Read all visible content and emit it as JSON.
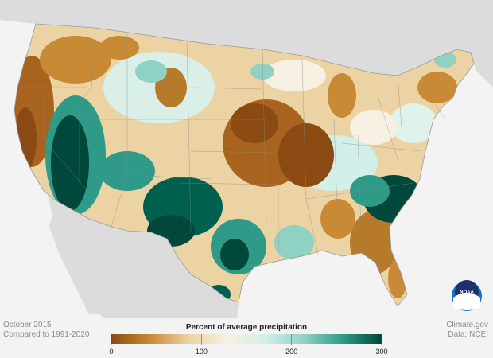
{
  "date_label": "October 2015",
  "compare_label": "Compared to 1991-2020",
  "legend": {
    "title": "Percent of average precipitation",
    "min": 0,
    "max": 300,
    "ticks": [
      "0",
      "100",
      "200",
      "300"
    ],
    "tick_values": [
      0,
      100,
      200,
      300
    ],
    "colors": [
      "#8a4a12",
      "#c98a35",
      "#ecd3a3",
      "#f7f1e3",
      "#d3efe9",
      "#8fd1c3",
      "#2e9a87",
      "#00473c"
    ]
  },
  "credits": {
    "site": "Climate.gov",
    "source": "Data: NCEI"
  },
  "logo": {
    "text": "NOAA"
  },
  "map_colors": {
    "background": "#f3f3f3",
    "land_other": "#dcdcdc",
    "water": "#f3f3f3",
    "very_dry": "#8a4a12",
    "dry": "#c98a35",
    "slightly_dry": "#ecd3a3",
    "near_normal": "#f7f1e3",
    "slightly_wet": "#bfe6de",
    "wet": "#2e9a87",
    "very_wet": "#00473c"
  }
}
